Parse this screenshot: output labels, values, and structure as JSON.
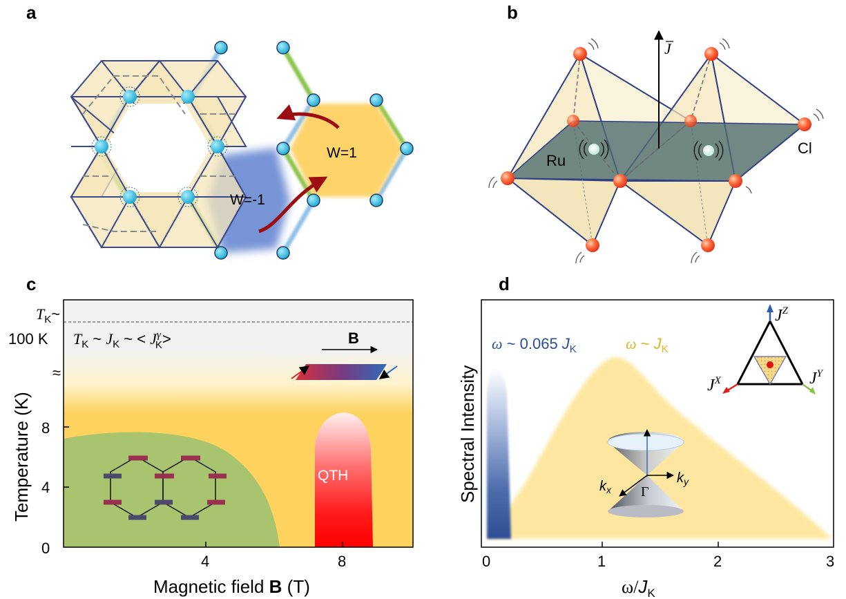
{
  "panels": {
    "a": {
      "label": "a",
      "winding_neg": "W=-1",
      "winding_pos": "W=1"
    },
    "b": {
      "label": "b",
      "current_symbol": "J",
      "ru_label": "Ru",
      "cl_label": "Cl"
    },
    "c": {
      "label": "c",
      "tk_top": "T",
      "tk_top_sub": "K",
      "tk_top_tail": "~",
      "tk_100": "100 K",
      "break_mark": "≈",
      "relation_a": "T",
      "relation_a_sub": "K",
      "relation_mid": " ~ ",
      "relation_b": "J",
      "relation_b_sub": "K",
      "relation_c": " ~ < ",
      "relation_d": "J",
      "relation_d_sup": "γ",
      "relation_d_sub": "K",
      "relation_e": ">",
      "field_label": "B",
      "qth_label": "QTH",
      "ylabel": "Temperature (K)",
      "xlabel_pre": "Magnetic field ",
      "xlabel_bold": "B",
      "xlabel_post": " (T)",
      "yticks": [
        "0",
        "4",
        "8"
      ],
      "xticks": [
        "4",
        "8"
      ]
    },
    "d": {
      "label": "d",
      "omega1_a": "ω",
      "omega1_b": " ~ 0.065 ",
      "omega1_c": "J",
      "omega1_sub": "K",
      "omega2_a": "ω",
      "omega2_b": " ~ ",
      "omega2_c": "J",
      "omega2_sub": "K",
      "ylabel": "Spectral Intensity",
      "xlabel_a": "ω/",
      "xlabel_b": "J",
      "xlabel_sub": "K",
      "xticks": [
        "0",
        "1",
        "2",
        "3"
      ],
      "jz": "J",
      "jz_sup": "Z",
      "jx": "J",
      "jx_sup": "X",
      "jy": "J",
      "jy_sup": "Y",
      "kx": "k",
      "kx_sub": "x",
      "ky": "k",
      "ky_sub": "y",
      "gamma": "Γ"
    }
  },
  "colors": {
    "bond_red": "#f26b6b",
    "bond_green": "#8ac24a",
    "bond_blue": "#8fc0e6",
    "site_cyan": "#2bb5d8",
    "w_neg_blue": "#6f8fd4",
    "w_pos_yellow": "#fdd36a",
    "octa_fill": "#f5e6b8",
    "ru_plane": "#4f6d6f",
    "cl_orange": "#ff5a2a",
    "phase_green": "#a9c46f",
    "phase_yellow": "#fdd25e",
    "qth_red": "#ff2020",
    "spec_blue": "#2c4f93",
    "spec_yellow": "#fde7a0"
  }
}
